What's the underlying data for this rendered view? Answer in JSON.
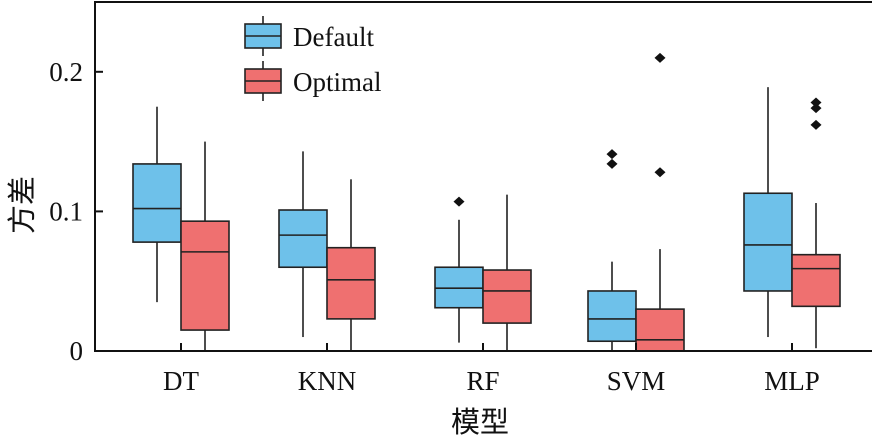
{
  "chart_data": {
    "type": "box",
    "title": "",
    "xlabel": "模型",
    "ylabel": "方差",
    "ylim": [
      0,
      0.25
    ],
    "yticks": [
      0,
      0.1,
      0.2
    ],
    "ytick_labels": [
      "0",
      "0.1",
      "0.2"
    ],
    "grid": false,
    "legend_position": "top-left",
    "categories": [
      "DT",
      "KNN",
      "RF",
      "SVM",
      "MLP"
    ],
    "series": [
      {
        "name": "Default",
        "color": "#6EC1EA",
        "boxes": [
          {
            "whisker_low": 0.035,
            "q1": 0.078,
            "median": 0.102,
            "q3": 0.134,
            "whisker_high": 0.175,
            "outliers": []
          },
          {
            "whisker_low": 0.01,
            "q1": 0.06,
            "median": 0.083,
            "q3": 0.101,
            "whisker_high": 0.143,
            "outliers": []
          },
          {
            "whisker_low": 0.006,
            "q1": 0.031,
            "median": 0.045,
            "q3": 0.06,
            "whisker_high": 0.094,
            "outliers": [
              0.107
            ]
          },
          {
            "whisker_low": 0.0,
            "q1": 0.007,
            "median": 0.023,
            "q3": 0.043,
            "whisker_high": 0.064,
            "outliers": [
              0.134,
              0.141
            ]
          },
          {
            "whisker_low": 0.01,
            "q1": 0.043,
            "median": 0.076,
            "q3": 0.113,
            "whisker_high": 0.189,
            "outliers": []
          }
        ]
      },
      {
        "name": "Optimal",
        "color": "#EF7070",
        "boxes": [
          {
            "whisker_low": 0.0,
            "q1": 0.015,
            "median": 0.071,
            "q3": 0.093,
            "whisker_high": 0.15,
            "outliers": []
          },
          {
            "whisker_low": 0.0,
            "q1": 0.023,
            "median": 0.051,
            "q3": 0.074,
            "whisker_high": 0.123,
            "outliers": []
          },
          {
            "whisker_low": 0.0,
            "q1": 0.02,
            "median": 0.043,
            "q3": 0.058,
            "whisker_high": 0.112,
            "outliers": []
          },
          {
            "whisker_low": 0.0,
            "q1": 0.0,
            "median": 0.008,
            "q3": 0.03,
            "whisker_high": 0.073,
            "outliers": [
              0.128,
              0.21
            ]
          },
          {
            "whisker_low": 0.002,
            "q1": 0.032,
            "median": 0.059,
            "q3": 0.069,
            "whisker_high": 0.106,
            "outliers": [
              0.162,
              0.174,
              0.178
            ]
          }
        ]
      }
    ]
  }
}
